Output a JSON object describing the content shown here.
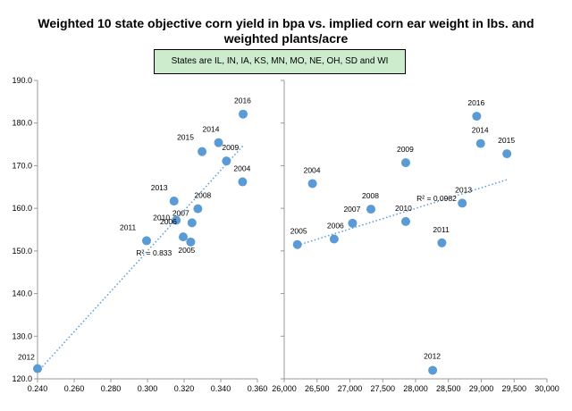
{
  "title": {
    "line1": "Weighted 10 state objective corn yield in bpa vs. implied corn ear weight in lbs.  and",
    "line2": "weighted plants/acre"
  },
  "note": "States are IL, IN, IA, KS, MN, MO, NE, OH, SD and WI",
  "colors": {
    "point": "#5b9bd5",
    "trend": "#5b9bd5",
    "note_bg": "#cdeccd"
  },
  "chart_data": [
    {
      "type": "scatter",
      "xlim": [
        0.24,
        0.36
      ],
      "ylim": [
        120,
        190
      ],
      "xticks": [
        "0.240",
        "0.260",
        "0.280",
        "0.300",
        "0.320",
        "0.340",
        "0.360"
      ],
      "yticks": [
        "120.0",
        "130.0",
        "140.0",
        "150.0",
        "160.0",
        "170.0",
        "180.0",
        "190.0"
      ],
      "points": [
        {
          "label": "2012",
          "x": 0.24,
          "y": 122.4
        },
        {
          "label": "2011",
          "x": 0.2995,
          "y": 152.4
        },
        {
          "label": "2013",
          "x": 0.3145,
          "y": 161.7
        },
        {
          "label": "2010",
          "x": 0.3157,
          "y": 157.2
        },
        {
          "label": "2006",
          "x": 0.3195,
          "y": 153.3
        },
        {
          "label": "2005",
          "x": 0.3236,
          "y": 152.1
        },
        {
          "label": "2007",
          "x": 0.3243,
          "y": 156.6
        },
        {
          "label": "2008",
          "x": 0.3275,
          "y": 159.9
        },
        {
          "label": "2015",
          "x": 0.3298,
          "y": 173.3
        },
        {
          "label": "2014",
          "x": 0.3388,
          "y": 175.4
        },
        {
          "label": "2009",
          "x": 0.3431,
          "y": 171.1
        },
        {
          "label": "2016",
          "x": 0.3522,
          "y": 182.1
        },
        {
          "label": "2004",
          "x": 0.3519,
          "y": 166.2
        }
      ],
      "trendline": {
        "style": "dotted",
        "x": [
          0.24,
          0.352
        ],
        "y": [
          121.6,
          174.6
        ]
      },
      "annotation": "R² = 0.833"
    },
    {
      "type": "scatter",
      "xlim": [
        26000,
        30000
      ],
      "ylim": [
        120,
        190
      ],
      "xticks": [
        "26,000",
        "26,500",
        "27,000",
        "27,500",
        "28,000",
        "28,500",
        "29,000",
        "29,500",
        "30,000"
      ],
      "points": [
        {
          "label": "2005",
          "x": 26200,
          "y": 151.5
        },
        {
          "label": "2004",
          "x": 26430,
          "y": 165.8
        },
        {
          "label": "2006",
          "x": 26760,
          "y": 152.8
        },
        {
          "label": "2007",
          "x": 27040,
          "y": 156.5
        },
        {
          "label": "2008",
          "x": 27320,
          "y": 159.8
        },
        {
          "label": "2009",
          "x": 27850,
          "y": 170.7
        },
        {
          "label": "2010",
          "x": 27850,
          "y": 156.9
        },
        {
          "label": "2011",
          "x": 28400,
          "y": 151.9
        },
        {
          "label": "2012",
          "x": 28260,
          "y": 122.0
        },
        {
          "label": "2013",
          "x": 28710,
          "y": 161.2
        },
        {
          "label": "2016",
          "x": 28930,
          "y": 181.6
        },
        {
          "label": "2014",
          "x": 28990,
          "y": 175.2
        },
        {
          "label": "2015",
          "x": 29390,
          "y": 172.8
        }
      ],
      "trendline": {
        "style": "dotted",
        "x": [
          26200,
          29390
        ],
        "y": [
          151.3,
          166.7
        ]
      },
      "annotation": "R² = 0.0982"
    }
  ]
}
